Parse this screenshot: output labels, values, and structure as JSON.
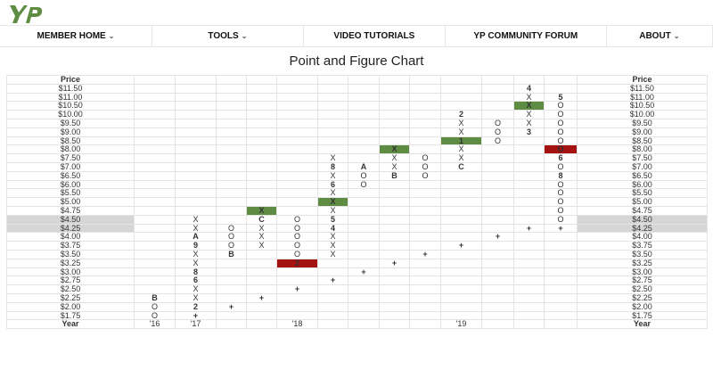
{
  "brand": {
    "logo_text": "YP",
    "color": "#5f8c43"
  },
  "nav": [
    {
      "label": "MEMBER HOME",
      "chevron": true
    },
    {
      "label": "TOOLS",
      "chevron": true
    },
    {
      "label": "VIDEO TUTORIALS",
      "chevron": false
    },
    {
      "label": "YP COMMUNITY FORUM",
      "chevron": false
    },
    {
      "label": "ABOUT",
      "chevron": true
    }
  ],
  "chevron_glyph": "⌄",
  "page_title": "Point and Figure Chart",
  "chart_data": {
    "type": "point-and-figure",
    "title": "Point and Figure Chart",
    "price_header": "Price",
    "year_header": "Year",
    "prices": [
      "$11.50",
      "$11.00",
      "$10.50",
      "$10.00",
      "$9.50",
      "$9.00",
      "$8.50",
      "$8.00",
      "$7.50",
      "$7.00",
      "$6.50",
      "$6.00",
      "$5.50",
      "$5.00",
      "$4.75",
      "$4.50",
      "$4.25",
      "$4.00",
      "$3.75",
      "$3.50",
      "$3.25",
      "$3.00",
      "$2.75",
      "$2.50",
      "$2.25",
      "$2.00",
      "$1.75"
    ],
    "highlighted_prices": [
      "$4.50",
      "$4.25"
    ],
    "colors": {
      "month": "#7a1f86",
      "buy_signal": "#5f8c43",
      "sell_signal": "#a51212",
      "trendline": "#5f8c43"
    },
    "columns": [
      {
        "year": "'16",
        "cells": [
          [
            "$2.25",
            "B",
            "month"
          ],
          [
            "$2.00",
            "O",
            "o"
          ],
          [
            "$1.75",
            "O",
            "o"
          ]
        ]
      },
      {
        "year": "'17",
        "cells": [
          [
            "$4.50",
            "X",
            "x"
          ],
          [
            "$4.25",
            "X",
            "x"
          ],
          [
            "$4.00",
            "A",
            "month"
          ],
          [
            "$3.75",
            "9",
            "month"
          ],
          [
            "$3.50",
            "X",
            "x"
          ],
          [
            "$3.25",
            "X",
            "x"
          ],
          [
            "$3.00",
            "8",
            "month"
          ],
          [
            "$2.75",
            "6",
            "month"
          ],
          [
            "$2.50",
            "X",
            "x"
          ],
          [
            "$2.25",
            "X",
            "x"
          ],
          [
            "$2.00",
            "2",
            "month"
          ],
          [
            "$1.75",
            "+",
            "plus"
          ]
        ]
      },
      {
        "year": "",
        "cells": [
          [
            "$4.25",
            "O",
            "o"
          ],
          [
            "$4.00",
            "O",
            "o"
          ],
          [
            "$3.75",
            "O",
            "o"
          ],
          [
            "$3.50",
            "B",
            "month"
          ],
          [
            "$2.00",
            "+",
            "plus"
          ]
        ]
      },
      {
        "year": "",
        "cells": [
          [
            "$4.75",
            "X",
            "buy"
          ],
          [
            "$4.50",
            "C",
            "month"
          ],
          [
            "$4.25",
            "X",
            "x"
          ],
          [
            "$4.00",
            "X",
            "x"
          ],
          [
            "$3.75",
            "X",
            "x"
          ],
          [
            "$2.25",
            "+",
            "plus"
          ]
        ]
      },
      {
        "year": "'18",
        "cells": [
          [
            "$4.50",
            "O",
            "o"
          ],
          [
            "$4.25",
            "O",
            "o"
          ],
          [
            "$4.00",
            "O",
            "o"
          ],
          [
            "$3.75",
            "O",
            "o"
          ],
          [
            "$3.50",
            "O",
            "o"
          ],
          [
            "$3.25",
            "2",
            "sell"
          ],
          [
            "$2.50",
            "+",
            "plus"
          ]
        ]
      },
      {
        "year": "",
        "cells": [
          [
            "$7.50",
            "X",
            "x"
          ],
          [
            "$7.00",
            "8",
            "month"
          ],
          [
            "$6.50",
            "X",
            "x"
          ],
          [
            "$6.00",
            "6",
            "month"
          ],
          [
            "$5.50",
            "X",
            "x"
          ],
          [
            "$5.00",
            "X",
            "buy"
          ],
          [
            "$4.75",
            "X",
            "x"
          ],
          [
            "$4.50",
            "5",
            "month"
          ],
          [
            "$4.25",
            "4",
            "month"
          ],
          [
            "$4.00",
            "X",
            "x"
          ],
          [
            "$3.75",
            "X",
            "x"
          ],
          [
            "$3.50",
            "X",
            "x"
          ],
          [
            "$2.75",
            "+",
            "plus"
          ]
        ]
      },
      {
        "year": "",
        "cells": [
          [
            "$7.00",
            "A",
            "month"
          ],
          [
            "$6.50",
            "O",
            "o"
          ],
          [
            "$6.00",
            "O",
            "o"
          ],
          [
            "$3.00",
            "+",
            "plus"
          ]
        ]
      },
      {
        "year": "",
        "cells": [
          [
            "$8.00",
            "X",
            "buy"
          ],
          [
            "$7.50",
            "X",
            "x"
          ],
          [
            "$7.00",
            "X",
            "x"
          ],
          [
            "$6.50",
            "B",
            "month"
          ],
          [
            "$3.25",
            "+",
            "plus"
          ]
        ]
      },
      {
        "year": "",
        "cells": [
          [
            "$7.50",
            "O",
            "o"
          ],
          [
            "$7.00",
            "O",
            "o"
          ],
          [
            "$6.50",
            "O",
            "o"
          ],
          [
            "$3.50",
            "+",
            "plus"
          ]
        ]
      },
      {
        "year": "'19",
        "cells": [
          [
            "$10.00",
            "2",
            "month"
          ],
          [
            "$9.50",
            "X",
            "x"
          ],
          [
            "$9.00",
            "X",
            "x"
          ],
          [
            "$8.50",
            "1",
            "buy"
          ],
          [
            "$8.00",
            "X",
            "x"
          ],
          [
            "$7.50",
            "X",
            "x"
          ],
          [
            "$7.00",
            "C",
            "month"
          ],
          [
            "$3.75",
            "+",
            "plus"
          ]
        ]
      },
      {
        "year": "",
        "cells": [
          [
            "$9.50",
            "O",
            "o"
          ],
          [
            "$9.00",
            "O",
            "o"
          ],
          [
            "$8.50",
            "O",
            "o"
          ],
          [
            "$4.00",
            "+",
            "plus"
          ]
        ]
      },
      {
        "year": "",
        "cells": [
          [
            "$11.50",
            "4",
            "month"
          ],
          [
            "$11.00",
            "X",
            "x"
          ],
          [
            "$10.50",
            "X",
            "buy"
          ],
          [
            "$10.00",
            "X",
            "x"
          ],
          [
            "$9.50",
            "X",
            "x"
          ],
          [
            "$9.00",
            "3",
            "month"
          ],
          [
            "$4.25",
            "+",
            "plus"
          ]
        ]
      },
      {
        "year": "",
        "cells": [
          [
            "$11.00",
            "5",
            "month"
          ],
          [
            "$10.50",
            "O",
            "o"
          ],
          [
            "$10.00",
            "O",
            "o"
          ],
          [
            "$9.50",
            "O",
            "o"
          ],
          [
            "$9.00",
            "O",
            "o"
          ],
          [
            "$8.50",
            "O",
            "o"
          ],
          [
            "$8.00",
            "O",
            "sell"
          ],
          [
            "$7.50",
            "6",
            "month"
          ],
          [
            "$7.00",
            "O",
            "o"
          ],
          [
            "$6.50",
            "8",
            "month"
          ],
          [
            "$6.00",
            "O",
            "o"
          ],
          [
            "$5.50",
            "O",
            "o"
          ],
          [
            "$5.00",
            "O",
            "o"
          ],
          [
            "$4.75",
            "O",
            "o"
          ],
          [
            "$4.50",
            "O",
            "o"
          ],
          [
            "$4.25",
            "+",
            "plus"
          ]
        ]
      }
    ]
  }
}
